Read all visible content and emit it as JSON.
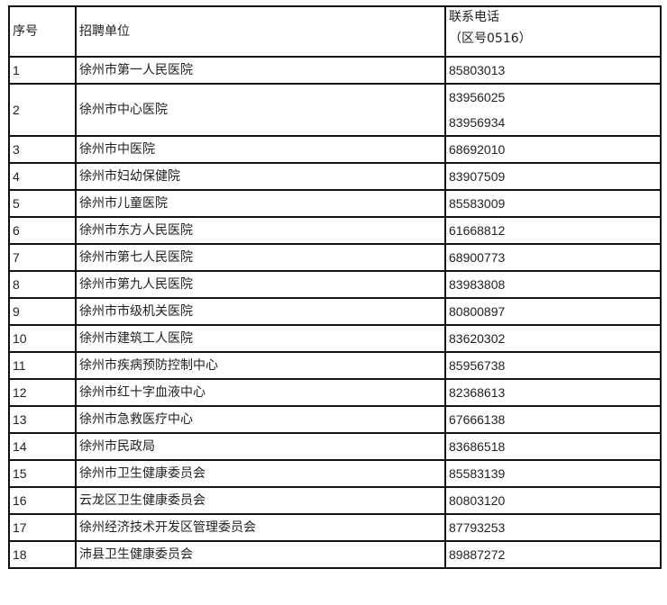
{
  "header": {
    "index": "序号",
    "unit": "招聘单位",
    "phone": "联系电话",
    "phone_note": "（区号0516）"
  },
  "rows": [
    {
      "index": "1",
      "unit": "徐州市第一人民医院",
      "phones": [
        "85803013"
      ]
    },
    {
      "index": "2",
      "unit": "徐州市中心医院",
      "phones": [
        "83956025",
        "83956934"
      ]
    },
    {
      "index": "3",
      "unit": "徐州市中医院",
      "phones": [
        "68692010"
      ]
    },
    {
      "index": "4",
      "unit": "徐州市妇幼保健院",
      "phones": [
        "83907509"
      ]
    },
    {
      "index": "5",
      "unit": "徐州市儿童医院",
      "phones": [
        "85583009"
      ]
    },
    {
      "index": "6",
      "unit": "徐州市东方人民医院",
      "phones": [
        "61668812"
      ]
    },
    {
      "index": "7",
      "unit": "徐州市第七人民医院",
      "phones": [
        "68900773"
      ]
    },
    {
      "index": "8",
      "unit": "徐州市第九人民医院",
      "phones": [
        "83983808"
      ]
    },
    {
      "index": "9",
      "unit": "徐州市市级机关医院",
      "phones": [
        "80800897"
      ]
    },
    {
      "index": "10",
      "unit": "徐州市建筑工人医院",
      "phones": [
        "83620302"
      ]
    },
    {
      "index": "11",
      "unit": "徐州市疾病预防控制中心",
      "phones": [
        "85956738"
      ]
    },
    {
      "index": "12",
      "unit": "徐州市红十字血液中心",
      "phones": [
        "82368613"
      ]
    },
    {
      "index": "13",
      "unit": "徐州市急救医疗中心",
      "phones": [
        "67666138"
      ]
    },
    {
      "index": "14",
      "unit": "徐州市民政局",
      "phones": [
        "83686518"
      ]
    },
    {
      "index": "15",
      "unit": "徐州市卫生健康委员会",
      "phones": [
        "85583139"
      ]
    },
    {
      "index": "16",
      "unit": "云龙区卫生健康委员会",
      "phones": [
        "80803120"
      ]
    },
    {
      "index": "17",
      "unit": "徐州经济技术开发区管理委员会",
      "phones": [
        "87793253"
      ]
    },
    {
      "index": "18",
      "unit": "沛县卫生健康委员会",
      "phones": [
        "89887272"
      ]
    }
  ]
}
